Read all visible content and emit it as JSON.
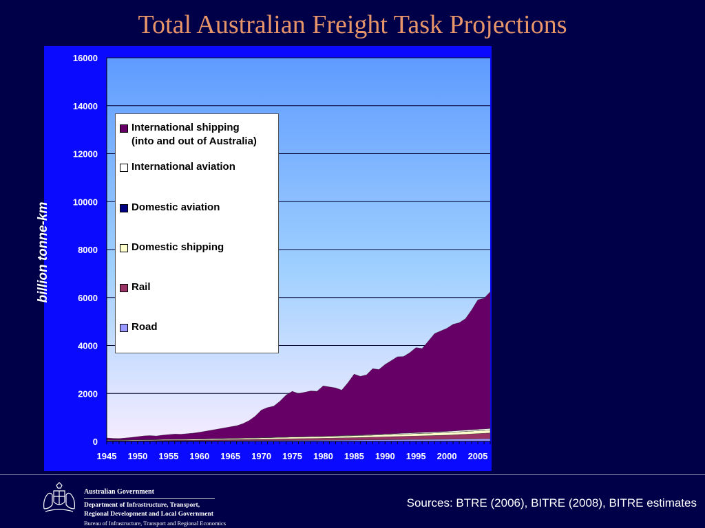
{
  "slide": {
    "title": "Total Australian Freight Task Projections",
    "sources": "Sources: BTRE (2006), BITRE (2008), BITRE estimates"
  },
  "footer": {
    "gov_line1": "Australian Government",
    "gov_line2": "Department of Infrastructure, Transport,",
    "gov_line3": "Regional Development and Local Government",
    "gov_line4": "Bureau of Infrastructure, Transport and Regional Economics"
  },
  "chart_data": {
    "type": "area",
    "stacked": true,
    "ylabel": "billion tonne-km",
    "xlabel": "",
    "ylim": [
      0,
      16000
    ],
    "xlim": [
      1945,
      2007
    ],
    "yticks": [
      0,
      2000,
      4000,
      6000,
      8000,
      10000,
      12000,
      14000,
      16000
    ],
    "xticks": [
      1945,
      1950,
      1955,
      1960,
      1965,
      1970,
      1975,
      1980,
      1985,
      1990,
      1995,
      2000,
      2005
    ],
    "grid": "horizontal",
    "legend_position": "top-left",
    "x": [
      1945,
      1946,
      1947,
      1948,
      1949,
      1950,
      1951,
      1952,
      1953,
      1954,
      1955,
      1956,
      1957,
      1958,
      1959,
      1960,
      1961,
      1962,
      1963,
      1964,
      1965,
      1966,
      1967,
      1968,
      1969,
      1970,
      1971,
      1972,
      1973,
      1974,
      1975,
      1976,
      1977,
      1978,
      1979,
      1980,
      1981,
      1982,
      1983,
      1984,
      1985,
      1986,
      1987,
      1988,
      1989,
      1990,
      1991,
      1992,
      1993,
      1994,
      1995,
      1996,
      1997,
      1998,
      1999,
      2000,
      2001,
      2002,
      2003,
      2004,
      2005,
      2006,
      2007
    ],
    "series": [
      {
        "name": "Road",
        "color": "#9999ff",
        "values": [
          10,
          11,
          12,
          13,
          14,
          15,
          16,
          17,
          18,
          19,
          20,
          21,
          22,
          23,
          24,
          26,
          27,
          28,
          29,
          30,
          32,
          33,
          34,
          35,
          36,
          38,
          39,
          40,
          41,
          42,
          44,
          45,
          46,
          47,
          48,
          50,
          52,
          54,
          56,
          58,
          60,
          62,
          64,
          66,
          68,
          70,
          72,
          74,
          76,
          78,
          80,
          82,
          84,
          86,
          88,
          90,
          93,
          96,
          99,
          102,
          105,
          108,
          112
        ]
      },
      {
        "name": "Rail",
        "color": "#993366",
        "values": [
          20,
          20,
          21,
          21,
          22,
          22,
          23,
          24,
          25,
          26,
          27,
          28,
          29,
          30,
          31,
          32,
          34,
          36,
          38,
          40,
          42,
          44,
          46,
          48,
          50,
          52,
          55,
          58,
          61,
          64,
          67,
          70,
          73,
          76,
          79,
          82,
          85,
          88,
          91,
          94,
          97,
          100,
          105,
          110,
          115,
          120,
          125,
          130,
          135,
          140,
          145,
          150,
          155,
          160,
          165,
          170,
          180,
          190,
          200,
          210,
          220,
          230,
          240
        ]
      },
      {
        "name": "Domestic shipping",
        "color": "#ffffcc",
        "values": [
          25,
          25,
          26,
          27,
          28,
          29,
          30,
          31,
          32,
          33,
          34,
          35,
          36,
          37,
          38,
          40,
          42,
          44,
          46,
          48,
          50,
          52,
          54,
          56,
          58,
          60,
          62,
          64,
          66,
          68,
          70,
          70,
          70,
          70,
          70,
          70,
          72,
          74,
          76,
          78,
          80,
          82,
          84,
          86,
          88,
          90,
          92,
          94,
          96,
          98,
          100,
          102,
          104,
          106,
          108,
          110,
          112,
          114,
          116,
          118,
          120,
          122,
          124
        ]
      },
      {
        "name": "Domestic aviation",
        "color": "#000080",
        "values": [
          0,
          0,
          0,
          0,
          0,
          0,
          0,
          0,
          0,
          0,
          0,
          0,
          0,
          0,
          0,
          0,
          0,
          0,
          0,
          0,
          0,
          0,
          0,
          0,
          0,
          0,
          0,
          0,
          0,
          0,
          1,
          1,
          1,
          1,
          1,
          1,
          1,
          1,
          1,
          1,
          1,
          1,
          1,
          1,
          1,
          1,
          1,
          1,
          1,
          1,
          1,
          1,
          1,
          1,
          1,
          1,
          1,
          1,
          1,
          1,
          1,
          1,
          1
        ]
      },
      {
        "name": "International aviation",
        "color": "#ffffff",
        "values": [
          1,
          1,
          1,
          1,
          1,
          1,
          1,
          1,
          1,
          1,
          2,
          2,
          2,
          2,
          2,
          3,
          3,
          3,
          3,
          3,
          4,
          4,
          4,
          5,
          5,
          6,
          6,
          7,
          7,
          8,
          9,
          10,
          10,
          11,
          12,
          13,
          14,
          15,
          16,
          17,
          18,
          19,
          20,
          22,
          24,
          26,
          28,
          30,
          32,
          34,
          36,
          38,
          40,
          42,
          44,
          46,
          48,
          50,
          52,
          54,
          56,
          58,
          60
        ]
      },
      {
        "name": "International shipping\n(into and out of Australia)",
        "color": "#660066",
        "values": [
          90,
          70,
          60,
          80,
          100,
          130,
          160,
          170,
          150,
          180,
          200,
          220,
          210,
          230,
          250,
          280,
          320,
          360,
          400,
          440,
          480,
          520,
          600,
          720,
          900,
          1150,
          1250,
          1300,
          1500,
          1750,
          1900,
          1800,
          1850,
          1900,
          1880,
          2100,
          2050,
          2000,
          1900,
          2200,
          2550,
          2450,
          2500,
          2750,
          2700,
          2900,
          3050,
          3200,
          3200,
          3350,
          3550,
          3500,
          3800,
          4100,
          4200,
          4300,
          4450,
          4500,
          4650,
          5000,
          5400,
          5450,
          5700
        ]
      }
    ]
  },
  "legend": {
    "items": [
      {
        "line1": "International shipping",
        "line2": "(into and out of Australia)",
        "color": "#660066"
      },
      {
        "line1": "International aviation",
        "line2": "",
        "color": "#ffffff"
      },
      {
        "line1": "Domestic aviation",
        "line2": "",
        "color": "#000080"
      },
      {
        "line1": "Domestic shipping",
        "line2": "",
        "color": "#ffffcc"
      },
      {
        "line1": "Rail",
        "line2": "",
        "color": "#993366"
      },
      {
        "line1": "Road",
        "line2": "",
        "color": "#9999ff"
      }
    ]
  }
}
